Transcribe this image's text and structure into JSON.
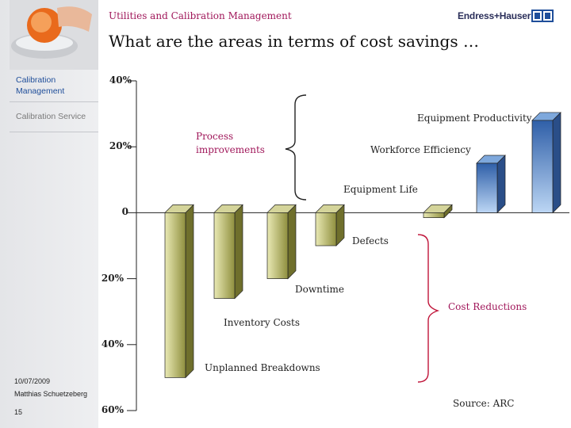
{
  "header": {
    "section_title": "Utilities and Calibration Management",
    "logo_text": "Endress+Hauser",
    "slide_title": "What are the areas in terms of cost savings …"
  },
  "sidebar": {
    "items": [
      {
        "label": "Calibration Management",
        "active": true
      },
      {
        "label": "Calibration Service",
        "active": false
      }
    ]
  },
  "footer": {
    "date": "10/07/2009",
    "author": "Matthias Schuetzeberg",
    "page": "15"
  },
  "chart_data": {
    "type": "bar",
    "ylim": [
      -60,
      40
    ],
    "y_ticks": [
      {
        "value": 40,
        "label": "40%"
      },
      {
        "value": 20,
        "label": "20%"
      },
      {
        "value": 0,
        "label": "0"
      },
      {
        "value": -20,
        "label": "20%"
      },
      {
        "value": -40,
        "label": "40%"
      },
      {
        "value": -60,
        "label": "60%"
      }
    ],
    "categories": [
      "Unplanned Breakdowns",
      "Inventory Costs",
      "Downtime",
      "Defects",
      "Equipment Life",
      "Workforce Efficiency",
      "Equipment Productivity"
    ],
    "values": [
      -50,
      -26,
      -20,
      -10,
      -1.5,
      15,
      28
    ],
    "annotations": [
      {
        "text": "Process improvements",
        "applies_to": [
          "Equipment Life",
          "Workforce Efficiency",
          "Equipment Productivity"
        ]
      },
      {
        "text": "Cost Reductions",
        "applies_to": [
          "Unplanned Breakdowns",
          "Inventory Costs",
          "Downtime",
          "Defects"
        ]
      }
    ],
    "source": "Source: ARC",
    "colors": {
      "negative_bar": "#b8b86a",
      "positive_bar": "#5a90d0",
      "cost_bracket": "#c0153a",
      "improvement_bracket": "#222222",
      "annotation_text": "#a0175a"
    }
  }
}
